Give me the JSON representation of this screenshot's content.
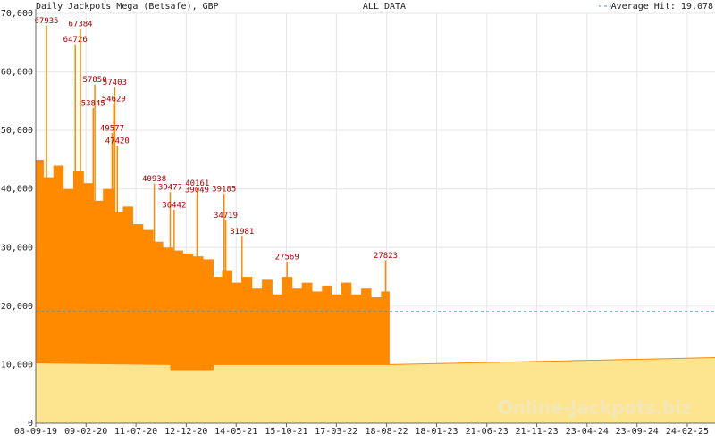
{
  "chart_data": {
    "type": "jackpot-history",
    "title": "Daily Jackpots Mega (Betsafe), GBP",
    "subtitle": "ALL DATA",
    "watermark": "Online-Jackpots.biz",
    "average": {
      "label": "Average Hit: 19,078",
      "value": 19078,
      "color": "#3399cc"
    },
    "xlim": [
      "2019-09-08",
      "2025-05-20"
    ],
    "xticks": [
      {
        "value": "2019-09-08",
        "label": "08-09-19"
      },
      {
        "value": "2020-02-09",
        "label": "09-02-20"
      },
      {
        "value": "2020-07-11",
        "label": "11-07-20"
      },
      {
        "value": "2020-12-12",
        "label": "12-12-20"
      },
      {
        "value": "2021-05-14",
        "label": "14-05-21"
      },
      {
        "value": "2021-10-15",
        "label": "15-10-21"
      },
      {
        "value": "2022-03-17",
        "label": "17-03-22"
      },
      {
        "value": "2022-08-18",
        "label": "18-08-22"
      },
      {
        "value": "2023-01-18",
        "label": "18-01-23"
      },
      {
        "value": "2023-06-21",
        "label": "21-06-23"
      },
      {
        "value": "2023-11-21",
        "label": "21-11-23"
      },
      {
        "value": "2024-04-23",
        "label": "23-04-24"
      },
      {
        "value": "2024-09-23",
        "label": "23-09-24"
      },
      {
        "value": "2025-02-24",
        "label": "24-02-25"
      }
    ],
    "ylim": [
      0,
      70000
    ],
    "yticks": [
      0,
      {
        "value": 10000,
        "label": "10,000"
      },
      {
        "value": 20000,
        "label": "20,000"
      },
      {
        "value": 30000,
        "label": "30,000"
      },
      {
        "value": 40000,
        "label": "40,000"
      },
      {
        "value": 50000,
        "label": "50,000"
      },
      {
        "value": 60000,
        "label": "60,000"
      },
      {
        "value": 70000,
        "label": "70,000"
      }
    ],
    "grid": true,
    "hits": {
      "color": "#ff8a00",
      "x": [
        "2019-09-08",
        "2019-10-01",
        "2019-11-01",
        "2019-12-01",
        "2020-01-01",
        "2020-02-01",
        "2020-03-01",
        "2020-04-01",
        "2020-05-01",
        "2020-06-01",
        "2020-07-01",
        "2020-08-01",
        "2020-09-01",
        "2020-10-01",
        "2020-11-01",
        "2020-12-01",
        "2021-01-01",
        "2021-02-01",
        "2021-03-05",
        "2021-04-01",
        "2021-05-01",
        "2021-06-01",
        "2021-07-01",
        "2021-08-01",
        "2021-09-01",
        "2021-10-01",
        "2021-11-01",
        "2021-12-01",
        "2022-01-01",
        "2022-02-01",
        "2022-03-01",
        "2022-04-01",
        "2022-05-01",
        "2022-06-01",
        "2022-07-01",
        "2022-08-01"
      ],
      "values": [
        45000,
        42000,
        44000,
        40000,
        43000,
        41000,
        38000,
        40000,
        36000,
        37000,
        34000,
        33000,
        31000,
        30000,
        29500,
        29000,
        28500,
        28000,
        25000,
        26000,
        24000,
        25000,
        23000,
        24500,
        22000,
        25000,
        23000,
        24000,
        22500,
        23500,
        22000,
        24000,
        22000,
        23000,
        21500,
        22500
      ]
    },
    "peaks": {
      "color": "#ff8a00",
      "label_color": "#aa0000",
      "x": [
        "2019-10-11",
        "2020-01-07",
        "2020-01-23",
        "2020-03-07",
        "2020-03-02",
        "2020-05-07",
        "2020-05-04",
        "2020-04-29",
        "2020-05-15",
        "2020-09-05",
        "2020-10-24",
        "2021-01-15",
        "2021-01-14",
        "2021-04-07",
        "2020-11-05",
        "2021-04-12",
        "2021-06-01",
        "2021-10-17",
        "2022-08-15"
      ],
      "values": [
        67935,
        64726,
        67384,
        57850,
        53845,
        57403,
        54629,
        49577,
        47420,
        40938,
        39477,
        40161,
        39049,
        39185,
        36442,
        34719,
        31981,
        27569,
        27823
      ]
    },
    "seed": {
      "color": "#fde58f",
      "line_color": "#ff8a00",
      "x": [
        "2019-09-08",
        "2020-10-25",
        "2020-10-26",
        "2021-03-04",
        "2021-03-05",
        "2022-09-01",
        "2025-05-20"
      ],
      "values": [
        10300,
        10000,
        9000,
        9000,
        10000,
        10000,
        11200
      ]
    }
  }
}
